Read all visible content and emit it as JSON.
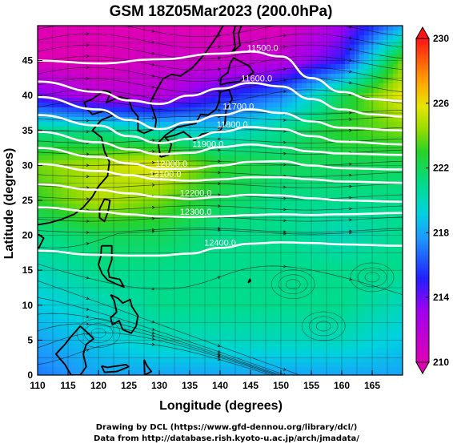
{
  "chart_data": {
    "type": "heatmap",
    "title": "GSM 18Z05Mar2023 (200.0hPa)",
    "xlabel": "Longitude (degrees)",
    "ylabel": "Latitude (degrees)",
    "xlim": [
      110,
      170
    ],
    "ylim": [
      0,
      50
    ],
    "x_ticks": [
      110,
      115,
      120,
      125,
      130,
      135,
      140,
      145,
      150,
      155,
      160,
      165
    ],
    "y_ticks": [
      0,
      5,
      10,
      15,
      20,
      25,
      30,
      35,
      40,
      45
    ],
    "grid": true,
    "shaded_field": "temperature (K)",
    "colorbar": {
      "range": [
        210,
        230
      ],
      "tick_labels": [
        "210",
        "214",
        "218",
        "222",
        "226",
        "230"
      ],
      "extend": "both"
    },
    "contours": [
      {
        "label": "11500.0",
        "lat_at_lon": [
          [
            110,
            45.0
          ],
          [
            120,
            44.6
          ],
          [
            130,
            45.2
          ],
          [
            140,
            46.0
          ],
          [
            145,
            46.3
          ],
          [
            150,
            45.6
          ],
          [
            155,
            42.5
          ],
          [
            160,
            40.5
          ],
          [
            165,
            39.5
          ],
          [
            170,
            39.2
          ]
        ]
      },
      {
        "label": "11600.0",
        "lat_at_lon": [
          [
            110,
            42.0
          ],
          [
            120,
            40.5
          ],
          [
            125,
            39.3
          ],
          [
            130,
            38.8
          ],
          [
            135,
            40.0
          ],
          [
            140,
            41.0
          ],
          [
            145,
            41.8
          ],
          [
            150,
            41.3
          ],
          [
            155,
            39.5
          ],
          [
            160,
            38.0
          ],
          [
            165,
            37.3
          ],
          [
            170,
            37.0
          ]
        ]
      },
      {
        "label": "11700.0",
        "lat_at_lon": [
          [
            110,
            39.8
          ],
          [
            120,
            38.0
          ],
          [
            125,
            36.5
          ],
          [
            130,
            35.2
          ],
          [
            135,
            36.2
          ],
          [
            140,
            37.2
          ],
          [
            145,
            38.0
          ],
          [
            150,
            37.5
          ],
          [
            155,
            36.3
          ],
          [
            160,
            35.4
          ],
          [
            170,
            35.0
          ]
        ]
      },
      {
        "label": "11800.0",
        "lat_at_lon": [
          [
            110,
            37.2
          ],
          [
            120,
            35.7
          ],
          [
            125,
            34.2
          ],
          [
            130,
            33.2
          ],
          [
            135,
            33.8
          ],
          [
            140,
            34.8
          ],
          [
            145,
            35.5
          ],
          [
            150,
            35.2
          ],
          [
            155,
            34.2
          ],
          [
            160,
            33.4
          ],
          [
            170,
            33.0
          ]
        ]
      },
      {
        "label": "11900.0",
        "lat_at_lon": [
          [
            110,
            34.8
          ],
          [
            120,
            33.3
          ],
          [
            125,
            32.3
          ],
          [
            130,
            31.6
          ],
          [
            135,
            31.8
          ],
          [
            140,
            32.6
          ],
          [
            145,
            33.0
          ],
          [
            150,
            32.6
          ],
          [
            155,
            32.0
          ],
          [
            160,
            31.7
          ],
          [
            170,
            31.5
          ]
        ]
      },
      {
        "label": "12000.0",
        "lat_at_lon": [
          [
            110,
            32.5
          ],
          [
            120,
            31.2
          ],
          [
            125,
            30.3
          ],
          [
            130,
            29.5
          ],
          [
            135,
            29.5
          ],
          [
            140,
            30.0
          ],
          [
            145,
            30.5
          ],
          [
            150,
            30.6
          ],
          [
            155,
            30.0
          ],
          [
            160,
            29.6
          ],
          [
            170,
            29.4
          ]
        ]
      },
      {
        "label": "12100.0",
        "lat_at_lon": [
          [
            110,
            30.2
          ],
          [
            120,
            29.2
          ],
          [
            125,
            28.6
          ],
          [
            130,
            28.0
          ],
          [
            135,
            27.8
          ],
          [
            140,
            28.0
          ],
          [
            145,
            28.3
          ],
          [
            150,
            28.3
          ],
          [
            155,
            28.0
          ],
          [
            160,
            27.7
          ],
          [
            170,
            27.5
          ]
        ]
      },
      {
        "label": "12200.0",
        "lat_at_lon": [
          [
            110,
            27.3
          ],
          [
            120,
            26.5
          ],
          [
            125,
            26.0
          ],
          [
            130,
            25.5
          ],
          [
            135,
            25.2
          ],
          [
            140,
            25.5
          ],
          [
            145,
            25.8
          ],
          [
            150,
            25.7
          ],
          [
            155,
            25.3
          ],
          [
            160,
            25.0
          ],
          [
            170,
            24.8
          ]
        ]
      },
      {
        "label": "12300.0",
        "lat_at_lon": [
          [
            110,
            24.0
          ],
          [
            120,
            23.4
          ],
          [
            125,
            23.0
          ],
          [
            130,
            22.7
          ],
          [
            135,
            22.6
          ],
          [
            140,
            22.7
          ],
          [
            145,
            22.9
          ],
          [
            150,
            23.0
          ],
          [
            155,
            22.9
          ],
          [
            160,
            23.0
          ],
          [
            170,
            23.2
          ]
        ]
      },
      {
        "label": "12400.0",
        "lat_at_lon": [
          [
            110,
            17.8
          ],
          [
            120,
            17.2
          ],
          [
            125,
            17.1
          ],
          [
            130,
            17.1
          ],
          [
            135,
            17.4
          ],
          [
            140,
            18.2
          ],
          [
            145,
            18.8
          ],
          [
            150,
            19.0
          ],
          [
            155,
            18.9
          ],
          [
            160,
            18.7
          ],
          [
            170,
            18.5
          ]
        ]
      }
    ],
    "temperature_field": {
      "lon": [
        110,
        120,
        130,
        140,
        150,
        160,
        170
      ],
      "lat": [
        50,
        45,
        40,
        35,
        30,
        25,
        20,
        15,
        10,
        5,
        0
      ],
      "values": [
        [
          210,
          210,
          210,
          210,
          210,
          213,
          218
        ],
        [
          210,
          210,
          211,
          211,
          212,
          215,
          224
        ],
        [
          214,
          212,
          212,
          215,
          217,
          222,
          226
        ],
        [
          221,
          221,
          220,
          219,
          221,
          223,
          224
        ],
        [
          224,
          225,
          226,
          223,
          222,
          222,
          222
        ],
        [
          223,
          225,
          224,
          222,
          221,
          221,
          221
        ],
        [
          221,
          222,
          222,
          221,
          221,
          220,
          221
        ],
        [
          220,
          221,
          221,
          221,
          221,
          221,
          221
        ],
        [
          219,
          220,
          221,
          221,
          221,
          221,
          220
        ],
        [
          218,
          219,
          220,
          220,
          220,
          220,
          219
        ],
        [
          217,
          218,
          218,
          218,
          218,
          218,
          218
        ]
      ]
    }
  },
  "credits": {
    "line1": "Drawing by DCL (https://www.gfd-dennou.org/library/dcl/)",
    "line2": "Data from http://database.rish.kyoto-u.ac.jp/arch/jmadata/"
  }
}
